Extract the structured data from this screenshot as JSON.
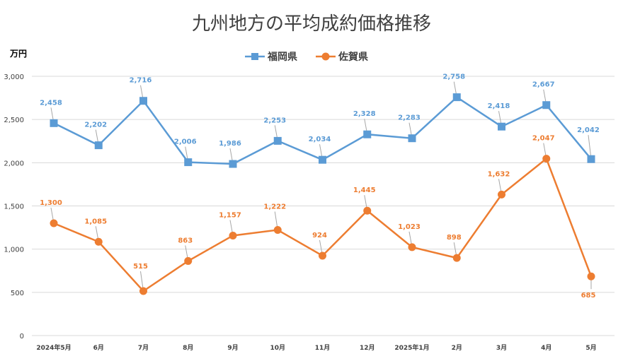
{
  "chart_data": {
    "type": "line",
    "title": "九州地方の平均成約価格推移",
    "unit_label": "万円",
    "categories": [
      "2024年5月",
      "6月",
      "7月",
      "8月",
      "9月",
      "10月",
      "11月",
      "12月",
      "2025年1月",
      "2月",
      "3月",
      "4月",
      "5月"
    ],
    "ylim": [
      0,
      3000
    ],
    "yticks": [
      0,
      500,
      1000,
      1500,
      2000,
      2500,
      3000
    ],
    "ytick_labels": [
      "0",
      "500",
      "1,000",
      "1,500",
      "2,000",
      "2,500",
      "3,000"
    ],
    "grid": true,
    "legend_position": "top",
    "series": [
      {
        "name": "福岡県",
        "color": "#5B9BD5",
        "marker": "square",
        "values": [
          2458,
          2202,
          2716,
          2006,
          1986,
          2253,
          2034,
          2328,
          2283,
          2758,
          2418,
          2667,
          2042
        ],
        "labels": [
          "2,458",
          "2,202",
          "2,716",
          "2,006",
          "1,986",
          "2,253",
          "2,034",
          "2,328",
          "2,283",
          "2,758",
          "2,418",
          "2,667",
          "2,042"
        ]
      },
      {
        "name": "佐賀県",
        "color": "#ED7D31",
        "marker": "circle",
        "values": [
          1300,
          1085,
          515,
          863,
          1157,
          1222,
          924,
          1445,
          1023,
          898,
          1632,
          2047,
          685
        ],
        "labels": [
          "1,300",
          "1,085",
          "515",
          "863",
          "1,157",
          "1,222",
          "924",
          "1,445",
          "1,023",
          "898",
          "1,632",
          "2,047",
          "685"
        ]
      }
    ]
  }
}
